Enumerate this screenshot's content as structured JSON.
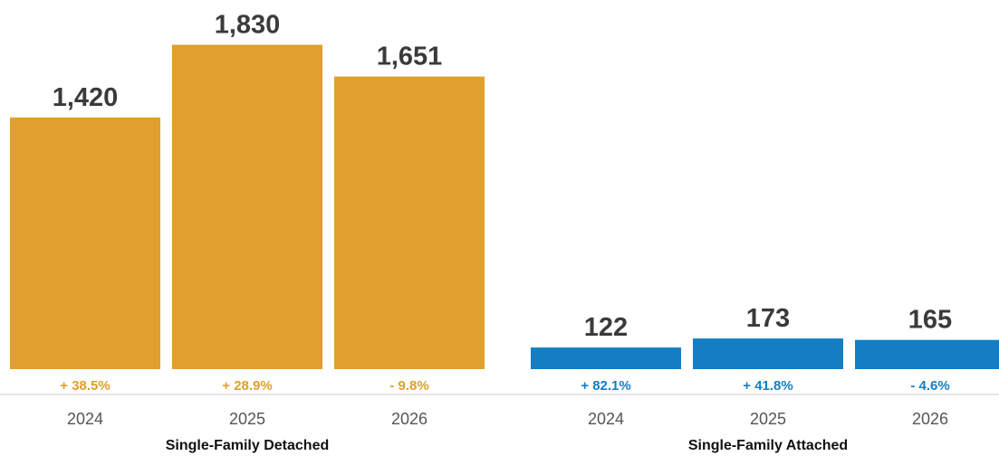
{
  "chart_data": {
    "type": "bar",
    "groups": [
      {
        "name": "Single-Family Detached",
        "color": "#E09F2F",
        "categories": [
          "2024",
          "2025",
          "2026"
        ],
        "values": [
          1420,
          1830,
          1651
        ],
        "value_labels": [
          "1,420",
          "1,830",
          "1,651"
        ],
        "changes": [
          "+ 38.5%",
          "+ 28.9%",
          "- 9.8%"
        ]
      },
      {
        "name": "Single-Family Attached",
        "color": "#157EC2",
        "categories": [
          "2024",
          "2025",
          "2026"
        ],
        "values": [
          122,
          173,
          165
        ],
        "value_labels": [
          "122",
          "173",
          "165"
        ],
        "changes": [
          "+ 82.1%",
          "+ 41.8%",
          "- 4.6%"
        ]
      }
    ],
    "ylim": [
      0,
      1950
    ],
    "grid": false,
    "axis_color": "#CCCCCC"
  }
}
